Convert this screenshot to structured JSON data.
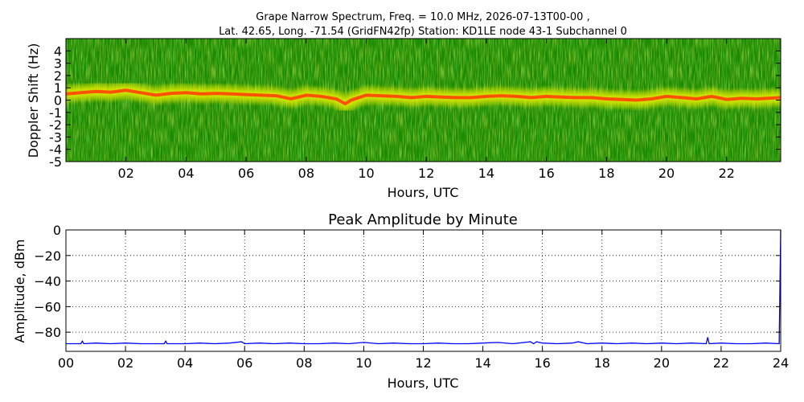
{
  "chart_data": [
    {
      "type": "heatmap",
      "title_line1": "Grape Narrow Spectrum, Freq. = 10.0 MHz, 2026-07-13T00-00 ,",
      "title_line2": "Lat.  42.65, Long. -71.54 (GridFN42fp) Station: KD1LE node 43-1 Subchannel 0",
      "xlabel": "Hours, UTC",
      "ylabel": "Doppler Shift (Hz)",
      "xlim": [
        0,
        23.8
      ],
      "ylim": [
        -5,
        5
      ],
      "xticks": [
        2,
        4,
        6,
        8,
        10,
        12,
        14,
        16,
        18,
        20,
        22
      ],
      "xtick_labels": [
        "02",
        "04",
        "06",
        "08",
        "10",
        "12",
        "14",
        "16",
        "18",
        "20",
        "22"
      ],
      "yticks": [
        -5,
        -4,
        -3,
        -2,
        -1,
        0,
        1,
        2,
        3,
        4
      ],
      "ytick_labels": [
        "-5",
        "-4",
        "-3",
        "-2",
        "-1",
        "0",
        "1",
        "2",
        "3",
        "4"
      ],
      "colors": {
        "background": "#1a8a00",
        "mid": "#d8e800",
        "peak": "#ff4a00"
      },
      "ridge_hours": [
        0,
        0.5,
        1,
        1.5,
        2,
        2.5,
        3,
        3.5,
        4,
        4.5,
        5,
        5.5,
        6,
        6.5,
        7,
        7.5,
        8,
        8.5,
        9,
        9.3,
        9.5,
        10,
        10.5,
        11,
        11.5,
        12,
        12.5,
        13,
        13.5,
        14,
        14.5,
        15,
        15.5,
        16,
        16.5,
        17,
        17.5,
        18,
        18.5,
        19,
        19.5,
        20,
        20.5,
        21,
        21.5,
        22,
        22.5,
        23,
        23.8
      ],
      "ridge_doppler": [
        0.5,
        0.6,
        0.7,
        0.65,
        0.8,
        0.6,
        0.4,
        0.55,
        0.6,
        0.5,
        0.55,
        0.5,
        0.45,
        0.4,
        0.35,
        0.1,
        0.4,
        0.3,
        0.1,
        -0.3,
        0.0,
        0.4,
        0.35,
        0.3,
        0.2,
        0.3,
        0.25,
        0.2,
        0.2,
        0.3,
        0.35,
        0.3,
        0.2,
        0.3,
        0.25,
        0.2,
        0.2,
        0.1,
        0.05,
        0.0,
        0.1,
        0.3,
        0.2,
        0.1,
        0.3,
        0.05,
        0.15,
        0.1,
        0.2
      ]
    },
    {
      "type": "line",
      "title": "Peak Amplitude by Minute",
      "xlabel": "Hours, UTC",
      "ylabel": "Amplitude, dBm",
      "xlim": [
        0,
        24
      ],
      "ylim": [
        -95,
        0
      ],
      "grid": true,
      "xticks": [
        0,
        2,
        4,
        6,
        8,
        10,
        12,
        14,
        16,
        18,
        20,
        22,
        24
      ],
      "xtick_labels": [
        "00",
        "02",
        "04",
        "06",
        "08",
        "10",
        "12",
        "14",
        "16",
        "18",
        "20",
        "22",
        "24"
      ],
      "yticks": [
        0,
        -20,
        -40,
        -60,
        -80
      ],
      "ytick_labels": [
        "0",
        "−20",
        "−40",
        "−60",
        "−80"
      ],
      "line_color": "#0000ff",
      "series": [
        {
          "x": [
            0,
            0.5,
            0.55,
            0.6,
            1,
            1.5,
            2,
            2.5,
            3,
            3.3,
            3.35,
            3.4,
            4,
            4.5,
            5,
            5.5,
            5.9,
            6,
            6.5,
            7,
            7.5,
            8,
            8.5,
            9,
            9.5,
            10,
            10.5,
            11,
            11.5,
            12,
            12.5,
            13,
            13.5,
            14,
            14.5,
            15,
            15.6,
            15.7,
            15.8,
            16,
            16.5,
            17,
            17.2,
            17.5,
            18,
            18.5,
            19,
            19.5,
            20,
            20.5,
            21,
            21.5,
            21.55,
            21.6,
            22,
            22.5,
            23,
            23.5,
            23.95,
            24
          ],
          "values": [
            -89,
            -89,
            -87,
            -89,
            -88.5,
            -89,
            -88.5,
            -89,
            -89,
            -89,
            -87,
            -89,
            -89,
            -88.5,
            -89,
            -88.5,
            -87.5,
            -89,
            -88.5,
            -89,
            -88.5,
            -89,
            -89,
            -88.5,
            -89,
            -88,
            -89,
            -88.5,
            -89,
            -89,
            -88.5,
            -89,
            -89,
            -88.5,
            -88,
            -89,
            -87.5,
            -89,
            -87.5,
            -88.5,
            -89,
            -88.5,
            -87.5,
            -89,
            -88.5,
            -89,
            -88.5,
            -89,
            -88.5,
            -89,
            -88.5,
            -89,
            -84,
            -89,
            -88.5,
            -89,
            -89,
            -88.5,
            -89,
            0
          ]
        }
      ]
    }
  ]
}
